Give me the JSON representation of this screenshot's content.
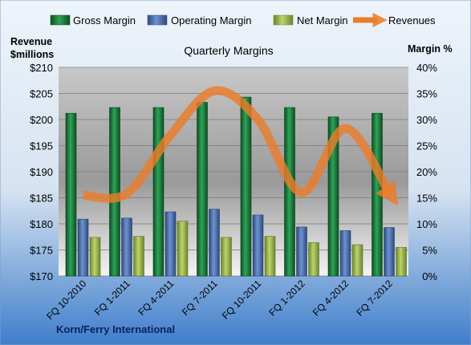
{
  "chart_data": {
    "type": "bar",
    "title": "Quarterly Margins",
    "footer": "Korn/Ferry International",
    "left_axis": {
      "title_line1": "Revenue",
      "title_line2": "$millions",
      "min": 170,
      "max": 210,
      "ticks": [
        170,
        175,
        180,
        185,
        190,
        195,
        200,
        205,
        210
      ],
      "tick_labels": [
        "$170",
        "$175",
        "$180",
        "$185",
        "$190",
        "$195",
        "$200",
        "$205",
        "$210"
      ]
    },
    "right_axis": {
      "title": "Margin %",
      "min": 0,
      "max": 40,
      "ticks": [
        0,
        5,
        10,
        15,
        20,
        25,
        30,
        35,
        40
      ],
      "tick_labels": [
        "0%",
        "5%",
        "10%",
        "15%",
        "20%",
        "25%",
        "30%",
        "35%",
        "40%"
      ]
    },
    "categories": [
      "FQ 10-2010",
      "FQ 1-2011",
      "FQ 4-2011",
      "FQ 7-2011",
      "FQ 10-2011",
      "FQ 1-2012",
      "FQ 4-2012",
      "FQ 7-2012"
    ],
    "series": [
      {
        "name": "Gross Margin",
        "kind": "bar",
        "axis": "right",
        "color": "#1a7a3c",
        "values": [
          31.2,
          32.3,
          32.3,
          33.3,
          34.3,
          32.3,
          30.5,
          31.2
        ]
      },
      {
        "name": "Operating Margin",
        "kind": "bar",
        "axis": "right",
        "color": "#4a6fad",
        "values": [
          10.9,
          11.1,
          12.3,
          12.8,
          11.7,
          9.4,
          8.7,
          9.3
        ]
      },
      {
        "name": "Net Margin",
        "kind": "bar",
        "axis": "right",
        "color": "#97b44a",
        "values": [
          7.4,
          7.6,
          10.5,
          7.4,
          7.6,
          6.4,
          6.0,
          5.5
        ]
      },
      {
        "name": "Revenues",
        "kind": "line",
        "axis": "left",
        "color": "#ea7d2c",
        "values": [
          185.5,
          185.8,
          197,
          205.5,
          200,
          186,
          198.3,
          186
        ]
      }
    ],
    "legend_position": "top",
    "grid": true
  }
}
